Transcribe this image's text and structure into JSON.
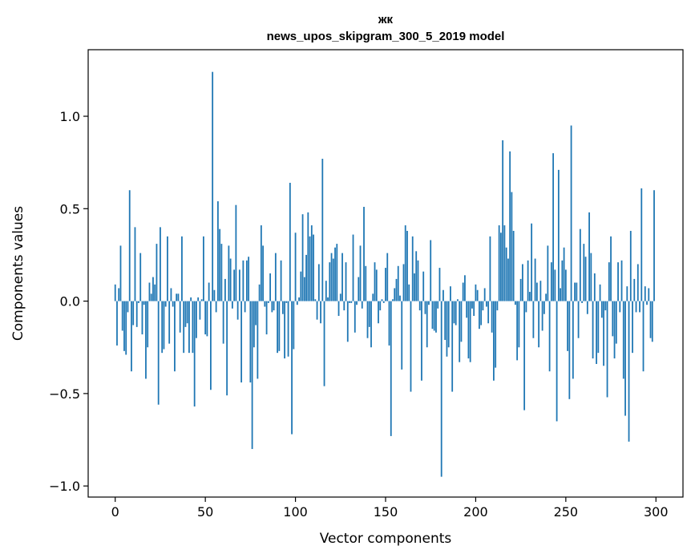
{
  "chart_data": {
    "type": "bar",
    "title_line1": "жк",
    "title_line2": "news_upos_skipgram_300_5_2019 model",
    "xlabel": "Vector components",
    "ylabel": "Components values",
    "xlim": [
      -15,
      315
    ],
    "ylim": [
      -1.06,
      1.36
    ],
    "xticks": [
      0,
      50,
      100,
      150,
      200,
      250,
      300
    ],
    "xtick_labels": [
      "0",
      "50",
      "100",
      "150",
      "200",
      "250",
      "300"
    ],
    "yticks": [
      -1.0,
      -0.5,
      0.0,
      0.5,
      1.0
    ],
    "ytick_labels": [
      "−1.0",
      "−0.5",
      "0.0",
      "0.5",
      "1.0"
    ],
    "bar_color": "#1f77b4",
    "values": [
      0.09,
      -0.24,
      0.07,
      0.3,
      -0.16,
      -0.27,
      -0.29,
      -0.06,
      0.6,
      -0.38,
      -0.13,
      0.4,
      -0.14,
      -0.01,
      0.26,
      -0.18,
      -0.02,
      -0.42,
      -0.25,
      0.1,
      0.04,
      0.13,
      0.09,
      0.31,
      -0.56,
      0.4,
      -0.28,
      -0.26,
      -0.03,
      0.35,
      -0.23,
      0.07,
      -0.03,
      -0.38,
      0.04,
      0.04,
      -0.17,
      0.35,
      -0.28,
      -0.14,
      -0.12,
      -0.28,
      0.02,
      -0.28,
      -0.57,
      -0.2,
      0.02,
      -0.1,
      0.01,
      0.35,
      -0.18,
      -0.19,
      0.1,
      -0.48,
      1.24,
      0.06,
      -0.06,
      0.54,
      0.39,
      0.31,
      -0.23,
      0.12,
      -0.51,
      0.3,
      0.23,
      -0.04,
      0.17,
      0.52,
      -0.1,
      0.17,
      -0.44,
      0.22,
      -0.06,
      0.22,
      0.24,
      -0.44,
      -0.8,
      -0.25,
      -0.13,
      -0.42,
      0.09,
      0.41,
      0.3,
      -0.03,
      -0.18,
      -0.01,
      0.15,
      -0.06,
      -0.05,
      0.26,
      -0.28,
      -0.27,
      0.22,
      -0.07,
      -0.31,
      -0.01,
      -0.3,
      0.64,
      -0.72,
      -0.26,
      0.37,
      -0.02,
      0.02,
      0.16,
      0.47,
      0.13,
      0.25,
      0.48,
      0.35,
      0.41,
      0.36,
      0.01,
      -0.1,
      0.2,
      -0.12,
      0.77,
      -0.46,
      0.11,
      0.02,
      0.21,
      0.26,
      0.23,
      0.29,
      0.31,
      -0.08,
      0.04,
      0.26,
      -0.05,
      0.21,
      -0.22,
      -0.01,
      -0.01,
      0.36,
      -0.17,
      -0.02,
      0.13,
      0.3,
      -0.04,
      0.51,
      0.19,
      -0.2,
      -0.14,
      -0.25,
      0.04,
      0.21,
      0.17,
      -0.12,
      -0.05,
      0.01,
      -0.01,
      0.18,
      0.26,
      -0.24,
      -0.73,
      0.01,
      0.07,
      0.12,
      0.19,
      0.03,
      -0.37,
      0.2,
      0.41,
      0.38,
      0.09,
      -0.49,
      0.35,
      0.15,
      0.27,
      0.22,
      -0.05,
      -0.43,
      0.16,
      -0.07,
      -0.25,
      -0.02,
      0.33,
      -0.15,
      -0.16,
      -0.17,
      -0.04,
      0.18,
      -0.95,
      0.06,
      -0.21,
      -0.3,
      -0.25,
      0.08,
      -0.49,
      -0.12,
      -0.13,
      0.01,
      -0.33,
      -0.22,
      0.1,
      0.14,
      -0.09,
      -0.31,
      -0.33,
      -0.04,
      -0.08,
      0.09,
      0.06,
      -0.15,
      -0.13,
      -0.05,
      0.07,
      -0.03,
      -0.12,
      0.35,
      -0.17,
      -0.43,
      -0.36,
      -0.05,
      0.41,
      0.37,
      0.87,
      0.41,
      0.29,
      0.23,
      0.81,
      0.59,
      0.38,
      -0.02,
      -0.32,
      -0.25,
      0.12,
      0.2,
      -0.59,
      -0.06,
      0.22,
      0.05,
      0.42,
      -0.2,
      0.23,
      0.1,
      -0.25,
      0.11,
      -0.16,
      -0.07,
      0.04,
      0.3,
      -0.38,
      0.21,
      0.8,
      0.17,
      -0.65,
      0.71,
      0.07,
      0.22,
      0.29,
      0.17,
      -0.27,
      -0.53,
      0.95,
      -0.42,
      0.1,
      0.1,
      -0.2,
      0.39,
      -0.01,
      0.31,
      0.24,
      -0.07,
      0.48,
      0.26,
      -0.31,
      0.15,
      -0.34,
      -0.28,
      0.09,
      -0.09,
      -0.35,
      -0.05,
      -0.52,
      0.21,
      0.35,
      -0.19,
      -0.31,
      -0.23,
      0.21,
      -0.06,
      0.22,
      -0.42,
      -0.62,
      0.08,
      -0.76,
      0.38,
      -0.28,
      0.12,
      -0.06,
      0.2,
      -0.06,
      0.61,
      -0.38,
      0.08,
      -0.02,
      0.07,
      -0.2,
      -0.22,
      0.6
    ]
  }
}
